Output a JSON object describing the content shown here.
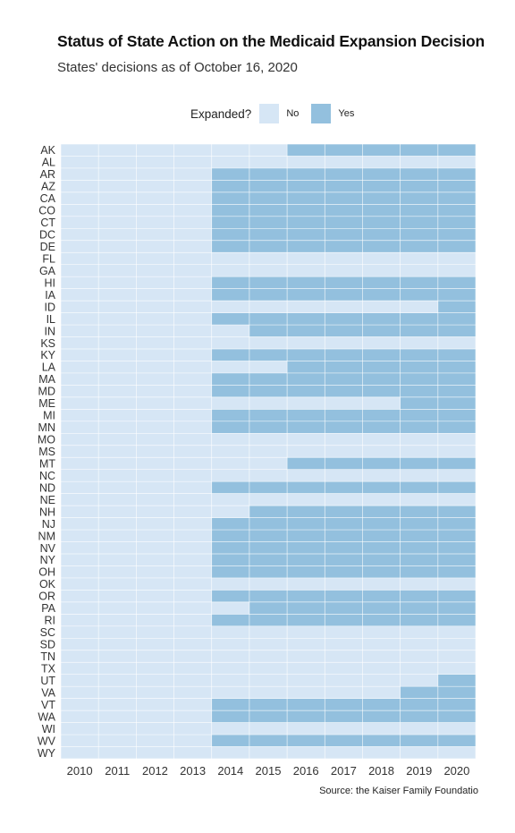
{
  "chart_data": {
    "type": "heatmap",
    "title": "Status of State Action on the Medicaid Expansion Decision",
    "subtitle": "States' decisions as of October 16, 2020",
    "legend": {
      "title": "Expanded?",
      "position": "top",
      "entries": [
        {
          "label": "No",
          "color": "#d6e6f5"
        },
        {
          "label": "Yes",
          "color": "#93c0de"
        }
      ]
    },
    "source": "Source: the Kaiser Family Foundatio",
    "x": [
      "2010",
      "2011",
      "2012",
      "2013",
      "2014",
      "2015",
      "2016",
      "2017",
      "2018",
      "2019",
      "2020"
    ],
    "states": [
      "AK",
      "AL",
      "AR",
      "AZ",
      "CA",
      "CO",
      "CT",
      "DC",
      "DE",
      "FL",
      "GA",
      "HI",
      "IA",
      "ID",
      "IL",
      "IN",
      "KS",
      "KY",
      "LA",
      "MA",
      "MD",
      "ME",
      "MI",
      "MN",
      "MO",
      "MS",
      "MT",
      "NC",
      "ND",
      "NE",
      "NH",
      "NJ",
      "NM",
      "NV",
      "NY",
      "OH",
      "OK",
      "OR",
      "PA",
      "RI",
      "SC",
      "SD",
      "TN",
      "TX",
      "UT",
      "VA",
      "VT",
      "WA",
      "WI",
      "WV",
      "WY"
    ],
    "first_expanded_year": {
      "AK": 2016,
      "AL": null,
      "AR": 2014,
      "AZ": 2014,
      "CA": 2014,
      "CO": 2014,
      "CT": 2014,
      "DC": 2014,
      "DE": 2014,
      "FL": null,
      "GA": null,
      "HI": 2014,
      "IA": 2014,
      "ID": 2020,
      "IL": 2014,
      "IN": 2015,
      "KS": null,
      "KY": 2014,
      "LA": 2016,
      "MA": 2014,
      "MD": 2014,
      "ME": 2019,
      "MI": 2014,
      "MN": 2014,
      "MO": null,
      "MS": null,
      "MT": 2016,
      "NC": null,
      "ND": 2014,
      "NE": null,
      "NH": 2015,
      "NJ": 2014,
      "NM": 2014,
      "NV": 2014,
      "NY": 2014,
      "OH": 2014,
      "OK": null,
      "OR": 2014,
      "PA": 2015,
      "RI": 2014,
      "SC": null,
      "SD": null,
      "TN": null,
      "TX": null,
      "UT": 2020,
      "VA": 2019,
      "VT": 2014,
      "WA": 2014,
      "WI": null,
      "WV": 2014,
      "WY": null
    },
    "grid": true,
    "colors": {
      "no": "#d6e6f5",
      "yes": "#93c0de",
      "grid": "#ffffff"
    }
  }
}
